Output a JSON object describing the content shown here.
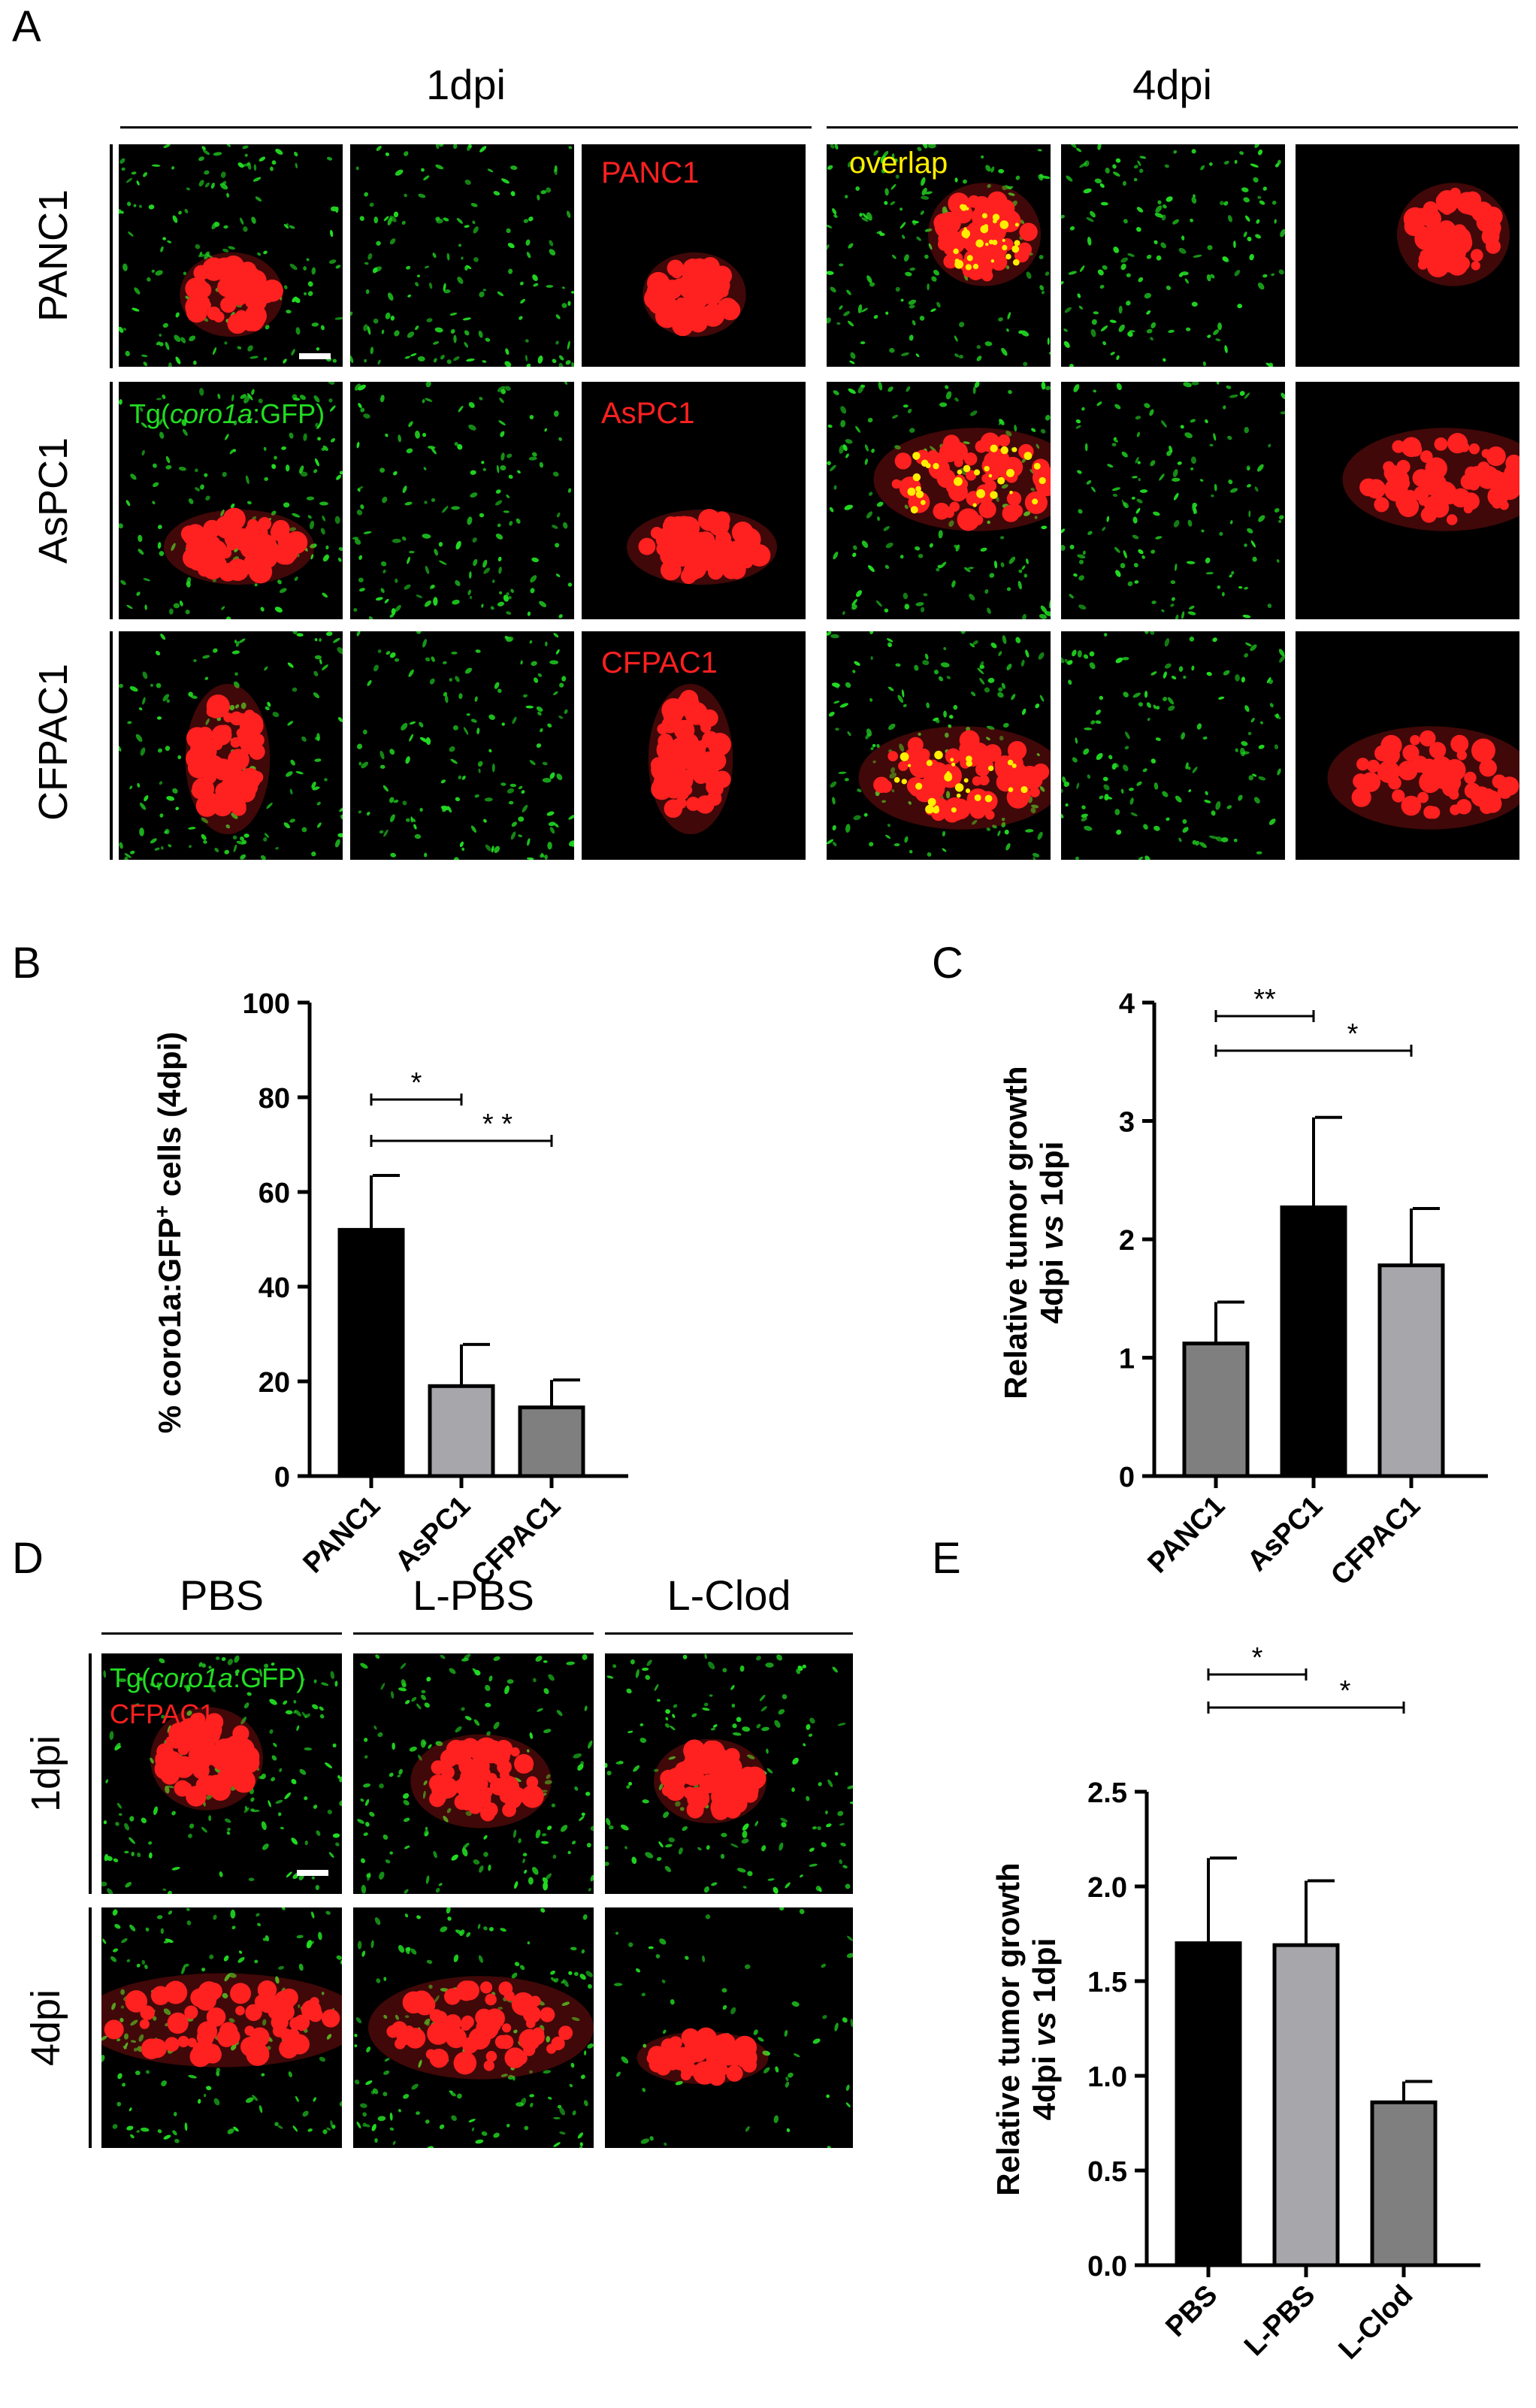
{
  "panels": {
    "a": "A",
    "b": "B",
    "c": "C",
    "d": "D",
    "e": "E"
  },
  "panel_a": {
    "col_headers": [
      "1dpi",
      "4dpi"
    ],
    "rows": [
      "PANC1",
      "AsPC1",
      "CFPAC1"
    ],
    "overlap_label": "overlap",
    "transgene_prefix": "Tg(",
    "transgene_italic": "coro1a",
    "transgene_suffix": ":GFP)",
    "red_labels": [
      "PANC1",
      "AsPC1",
      "CFPAC1"
    ],
    "colors": {
      "green": "#22dd22",
      "red": "#ff2020",
      "yellow": "#ffee00",
      "background": "#000000"
    }
  },
  "panel_d": {
    "col_headers": [
      "PBS",
      "L-PBS",
      "L-Clod"
    ],
    "rows": [
      "1dpi",
      "4dpi"
    ],
    "transgene_prefix": "Tg(",
    "transgene_italic": "coro1a",
    "transgene_suffix": ":GFP)",
    "red_label": "CFPAC1"
  },
  "chart_data": [
    {
      "id": "B",
      "type": "bar",
      "categories": [
        "PANC1",
        "AsPC1",
        "CFPAC1"
      ],
      "values": [
        52,
        19,
        14.5
      ],
      "errors": [
        11.5,
        8.8,
        5.8
      ],
      "colors": [
        "#000000",
        "#a6a6ab",
        "#7f7f7f"
      ],
      "ylabel": "% coro1a:GFP+ cells (4dpi)",
      "ylim": [
        0,
        100
      ],
      "yticks": [
        "0",
        "20",
        "40",
        "60",
        "80",
        "100"
      ],
      "significance": [
        {
          "from": "PANC1",
          "to": "AsPC1",
          "label": "*"
        },
        {
          "from": "PANC1",
          "to": "CFPAC1",
          "label": "* *"
        }
      ]
    },
    {
      "id": "C",
      "type": "bar",
      "categories": [
        "PANC1",
        "AsPC1",
        "CFPAC1"
      ],
      "values": [
        1.12,
        2.27,
        1.78
      ],
      "errors": [
        0.35,
        0.76,
        0.48
      ],
      "colors": [
        "#7f7f7f",
        "#000000",
        "#a6a6ab"
      ],
      "ylabel_line1": "Relative tumor growth",
      "ylabel_line2_prefix": "4dpi ",
      "ylabel_line2_italic": "vs",
      "ylabel_line2_suffix": " 1dpi",
      "ylim": [
        0,
        4
      ],
      "yticks": [
        "0",
        "1",
        "2",
        "3",
        "4"
      ],
      "significance": [
        {
          "from": "PANC1",
          "to": "AsPC1",
          "label": "**"
        },
        {
          "from": "PANC1",
          "to": "CFPAC1",
          "label": "*"
        }
      ]
    },
    {
      "id": "E",
      "type": "bar",
      "categories": [
        "PBS",
        "L-PBS",
        "L-Clod"
      ],
      "values": [
        1.7,
        1.69,
        0.86
      ],
      "errors": [
        0.45,
        0.34,
        0.11
      ],
      "colors": [
        "#000000",
        "#a6a6ab",
        "#7f7f7f"
      ],
      "ylabel_line1": "Relative tumor growth",
      "ylabel_line2_prefix": "4dpi ",
      "ylabel_line2_italic": "vs",
      "ylabel_line2_suffix": " 1dpi",
      "ylim": [
        0,
        2.5
      ],
      "yticks": [
        "0.0",
        "0.5",
        "1.0",
        "1.5",
        "2.0",
        "2.5"
      ],
      "significance": [
        {
          "from": "PBS",
          "to": "L-PBS",
          "label": "*"
        },
        {
          "from": "PBS",
          "to": "L-Clod",
          "label": "*"
        }
      ]
    }
  ]
}
